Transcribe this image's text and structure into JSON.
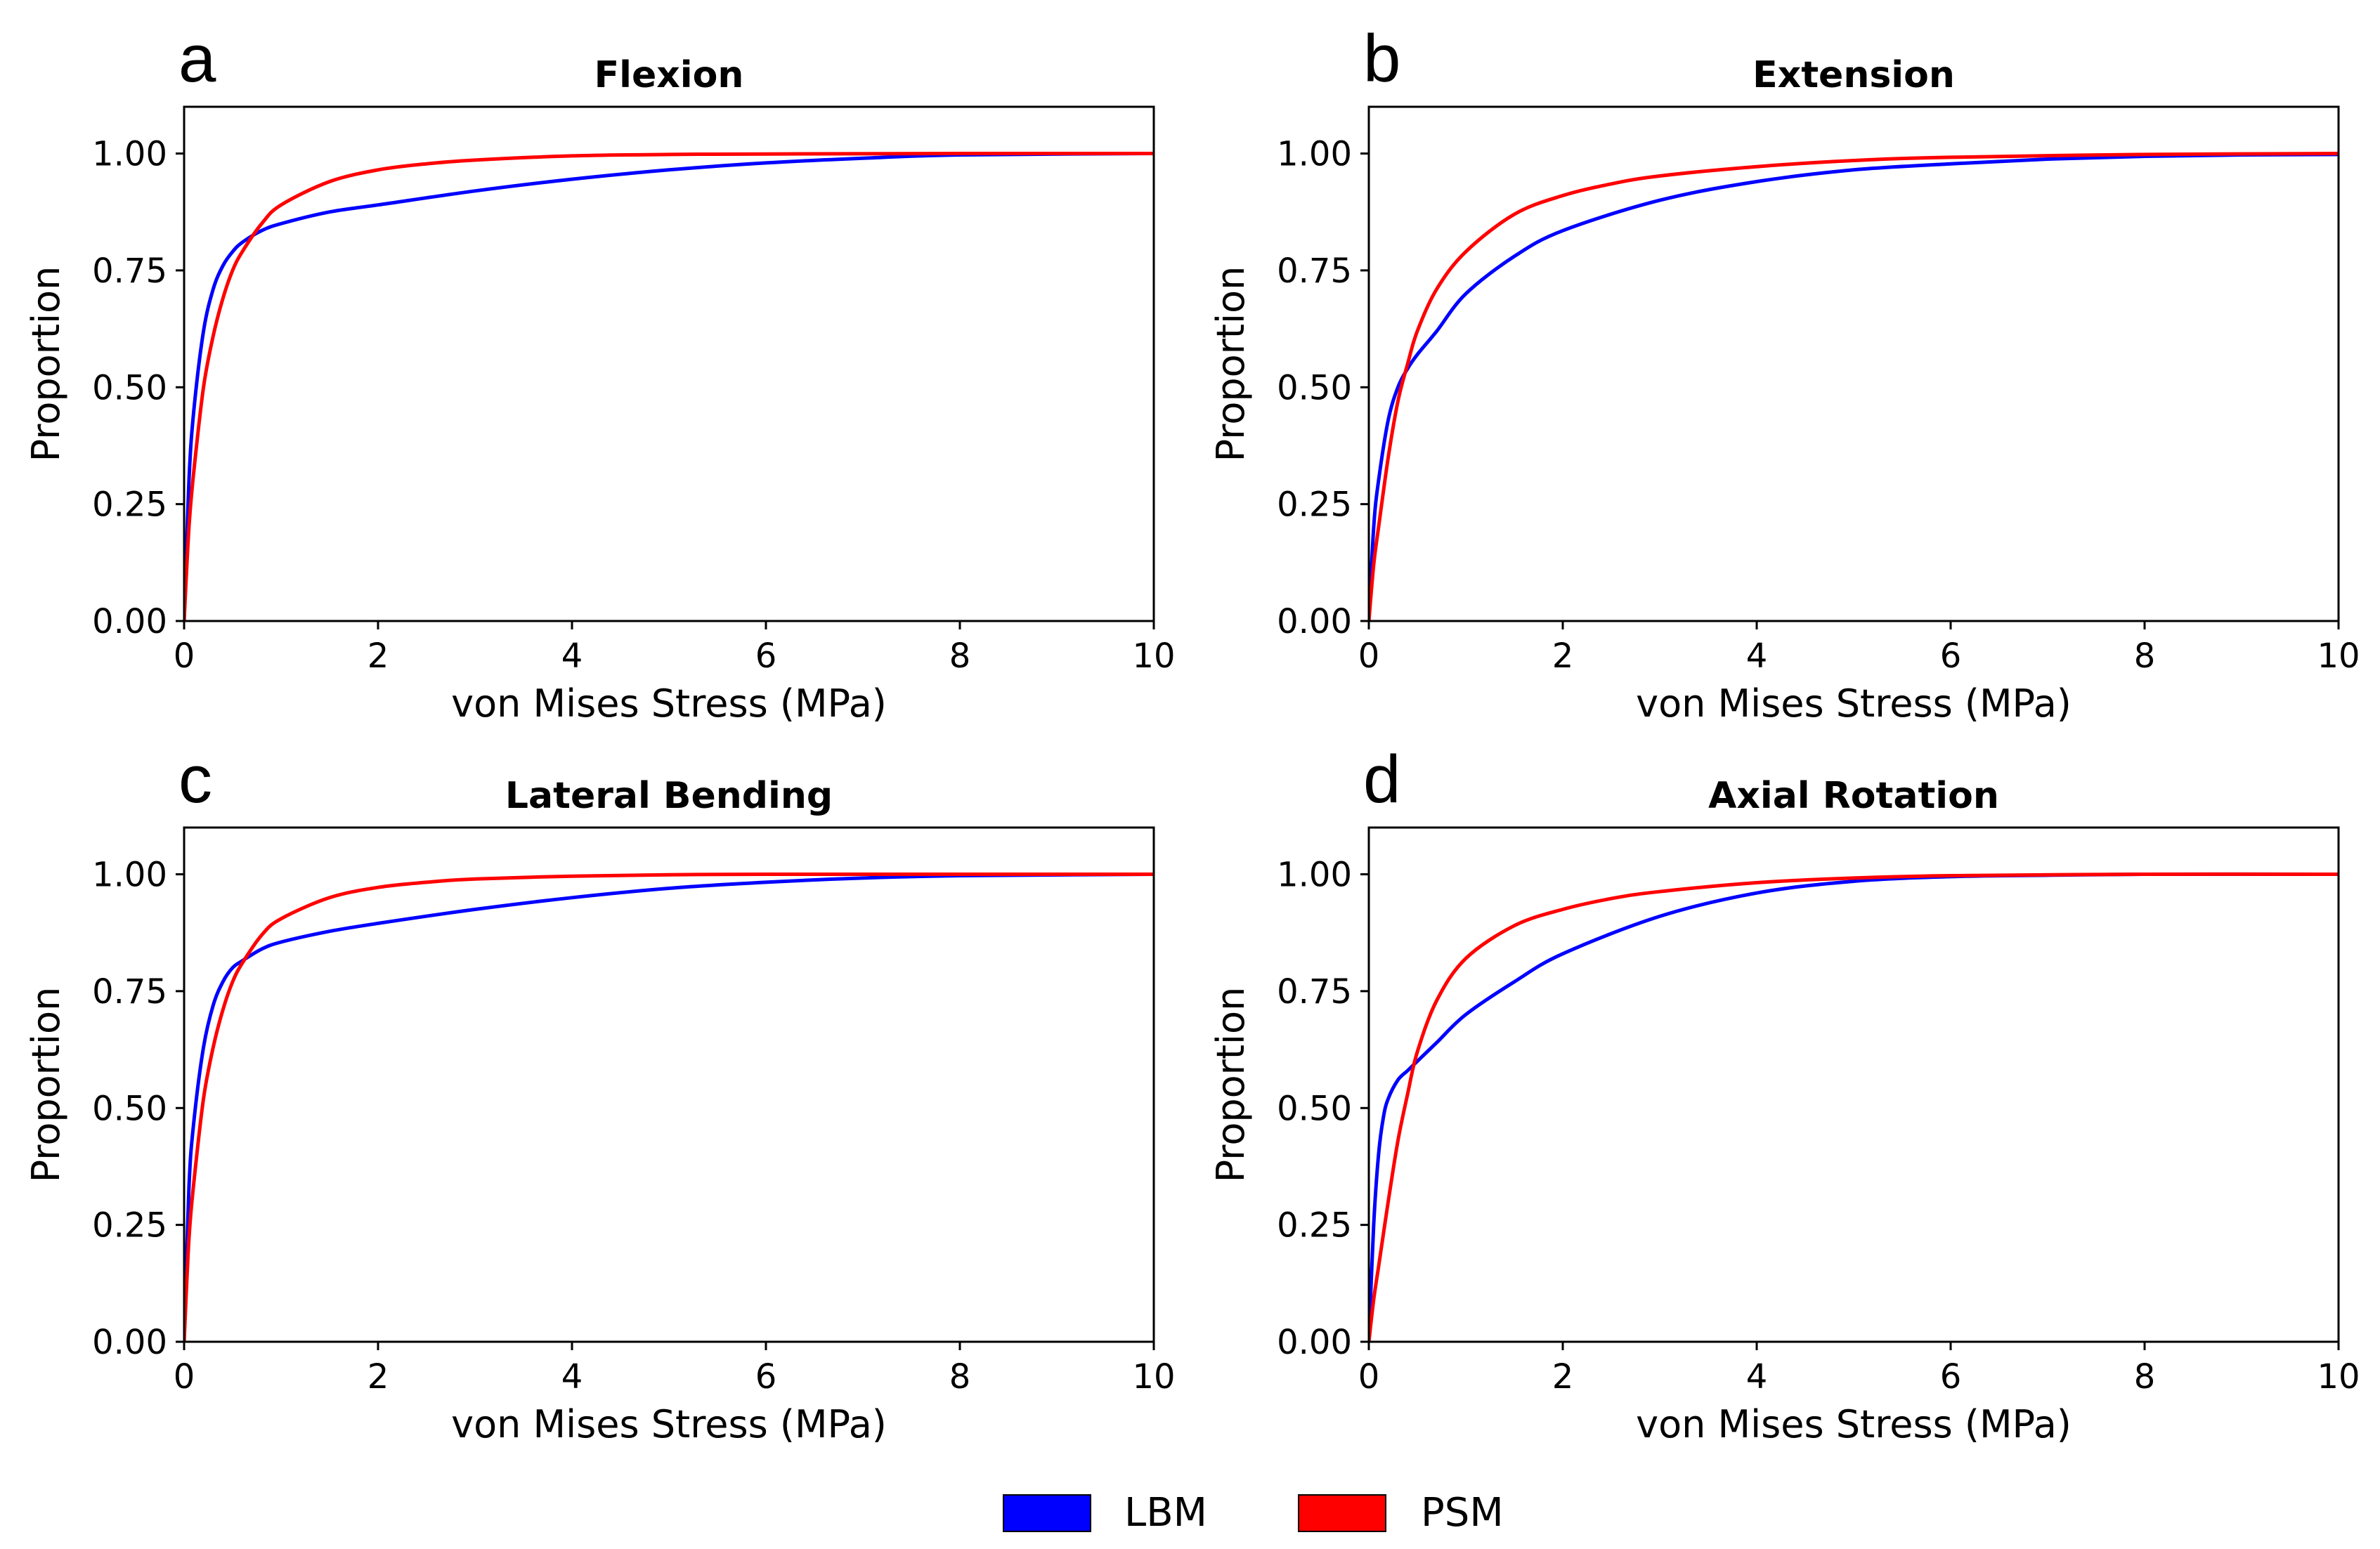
{
  "legend": {
    "entries": [
      {
        "name": "LBM",
        "color": "#0000ff"
      },
      {
        "name": "PSM",
        "color": "#ff0000"
      }
    ]
  },
  "chart_data": [
    {
      "letter": "a",
      "type": "line",
      "title": "Flexion",
      "xlabel": "von Mises Stress (MPa)",
      "ylabel": "Proportion",
      "xlim": [
        0,
        10
      ],
      "ylim": [
        0,
        1.1
      ],
      "xticks": [
        "0",
        "2",
        "4",
        "6",
        "8",
        "10"
      ],
      "yticks": [
        "0.00",
        "0.25",
        "0.50",
        "0.75",
        "1.00"
      ],
      "series": [
        {
          "name": "LBM",
          "color": "#0000ff",
          "x": [
            0,
            0.05,
            0.1,
            0.2,
            0.3,
            0.4,
            0.5,
            0.6,
            0.8,
            1.0,
            1.5,
            2,
            3,
            4,
            5,
            6,
            7,
            8,
            10
          ],
          "y": [
            0,
            0.3,
            0.45,
            0.62,
            0.71,
            0.76,
            0.79,
            0.81,
            0.835,
            0.85,
            0.875,
            0.89,
            0.92,
            0.945,
            0.965,
            0.98,
            0.99,
            0.997,
            1.0
          ]
        },
        {
          "name": "PSM",
          "color": "#ff0000",
          "x": [
            0,
            0.05,
            0.1,
            0.2,
            0.3,
            0.4,
            0.5,
            0.6,
            0.8,
            1.0,
            1.5,
            2,
            2.5,
            3,
            4,
            5,
            6,
            8,
            10
          ],
          "y": [
            0,
            0.2,
            0.32,
            0.5,
            0.61,
            0.69,
            0.75,
            0.79,
            0.85,
            0.89,
            0.94,
            0.965,
            0.978,
            0.986,
            0.995,
            0.998,
            0.999,
            1.0,
            1.0
          ]
        }
      ]
    },
    {
      "letter": "b",
      "type": "line",
      "title": "Extension",
      "xlabel": "von Mises Stress (MPa)",
      "ylabel": "Proportion",
      "xlim": [
        0,
        10
      ],
      "ylim": [
        0,
        1.1
      ],
      "xticks": [
        "0",
        "2",
        "4",
        "6",
        "8",
        "10"
      ],
      "yticks": [
        "0.00",
        "0.25",
        "0.50",
        "0.75",
        "1.00"
      ],
      "series": [
        {
          "name": "LBM",
          "color": "#0000ff",
          "x": [
            0,
            0.05,
            0.1,
            0.2,
            0.3,
            0.4,
            0.5,
            0.7,
            1.0,
            1.5,
            2,
            3,
            4,
            5,
            6,
            7,
            8,
            9,
            10
          ],
          "y": [
            0,
            0.2,
            0.3,
            0.43,
            0.5,
            0.54,
            0.57,
            0.62,
            0.7,
            0.78,
            0.835,
            0.9,
            0.94,
            0.965,
            0.978,
            0.988,
            0.994,
            0.997,
            0.998
          ]
        },
        {
          "name": "PSM",
          "color": "#ff0000",
          "x": [
            0,
            0.05,
            0.1,
            0.2,
            0.3,
            0.4,
            0.5,
            0.7,
            1.0,
            1.5,
            2,
            2.5,
            3,
            4,
            5,
            6,
            8,
            10
          ],
          "y": [
            0,
            0.12,
            0.2,
            0.35,
            0.47,
            0.55,
            0.62,
            0.71,
            0.79,
            0.87,
            0.91,
            0.935,
            0.952,
            0.972,
            0.985,
            0.992,
            0.998,
            1.0
          ]
        }
      ]
    },
    {
      "letter": "c",
      "type": "line",
      "title": "Lateral Bending",
      "xlabel": "von Mises Stress (MPa)",
      "ylabel": "Proportion",
      "xlim": [
        0,
        10
      ],
      "ylim": [
        0,
        1.1
      ],
      "xticks": [
        "0",
        "2",
        "4",
        "6",
        "8",
        "10"
      ],
      "yticks": [
        "0.00",
        "0.25",
        "0.50",
        "0.75",
        "1.00"
      ],
      "series": [
        {
          "name": "LBM",
          "color": "#0000ff",
          "x": [
            0,
            0.05,
            0.1,
            0.2,
            0.3,
            0.4,
            0.5,
            0.6,
            0.8,
            1.0,
            1.5,
            2,
            3,
            4,
            5,
            6,
            7,
            8,
            10
          ],
          "y": [
            0,
            0.33,
            0.47,
            0.63,
            0.72,
            0.77,
            0.8,
            0.815,
            0.84,
            0.855,
            0.878,
            0.895,
            0.925,
            0.95,
            0.97,
            0.983,
            0.992,
            0.997,
            1.0
          ]
        },
        {
          "name": "PSM",
          "color": "#ff0000",
          "x": [
            0,
            0.05,
            0.1,
            0.2,
            0.3,
            0.4,
            0.5,
            0.6,
            0.8,
            1.0,
            1.5,
            2,
            2.5,
            3,
            4,
            5,
            6,
            8,
            10
          ],
          "y": [
            0,
            0.22,
            0.34,
            0.52,
            0.63,
            0.71,
            0.77,
            0.81,
            0.87,
            0.905,
            0.95,
            0.972,
            0.983,
            0.99,
            0.996,
            0.999,
            1.0,
            1.0,
            1.0
          ]
        }
      ]
    },
    {
      "letter": "d",
      "type": "line",
      "title": "Axial Rotation",
      "xlabel": "von Mises Stress (MPa)",
      "ylabel": "Proportion",
      "xlim": [
        0,
        10
      ],
      "ylim": [
        0,
        1.1
      ],
      "xticks": [
        "0",
        "2",
        "4",
        "6",
        "8",
        "10"
      ],
      "yticks": [
        "0.00",
        "0.25",
        "0.50",
        "0.75",
        "1.00"
      ],
      "series": [
        {
          "name": "LBM",
          "color": "#0000ff",
          "x": [
            0,
            0.05,
            0.1,
            0.15,
            0.2,
            0.3,
            0.4,
            0.5,
            0.7,
            1.0,
            1.5,
            2,
            3,
            4,
            5,
            6,
            7,
            8,
            10
          ],
          "y": [
            0,
            0.25,
            0.4,
            0.48,
            0.52,
            0.56,
            0.58,
            0.6,
            0.64,
            0.7,
            0.77,
            0.83,
            0.91,
            0.96,
            0.985,
            0.995,
            0.998,
            1.0,
            1.0
          ]
        },
        {
          "name": "PSM",
          "color": "#ff0000",
          "x": [
            0,
            0.05,
            0.1,
            0.2,
            0.3,
            0.4,
            0.5,
            0.7,
            1.0,
            1.5,
            2,
            2.5,
            3,
            4,
            5,
            6,
            8,
            10
          ],
          "y": [
            0,
            0.09,
            0.16,
            0.3,
            0.43,
            0.53,
            0.62,
            0.73,
            0.82,
            0.89,
            0.925,
            0.948,
            0.963,
            0.982,
            0.992,
            0.997,
            1.0,
            1.0
          ]
        }
      ]
    }
  ]
}
